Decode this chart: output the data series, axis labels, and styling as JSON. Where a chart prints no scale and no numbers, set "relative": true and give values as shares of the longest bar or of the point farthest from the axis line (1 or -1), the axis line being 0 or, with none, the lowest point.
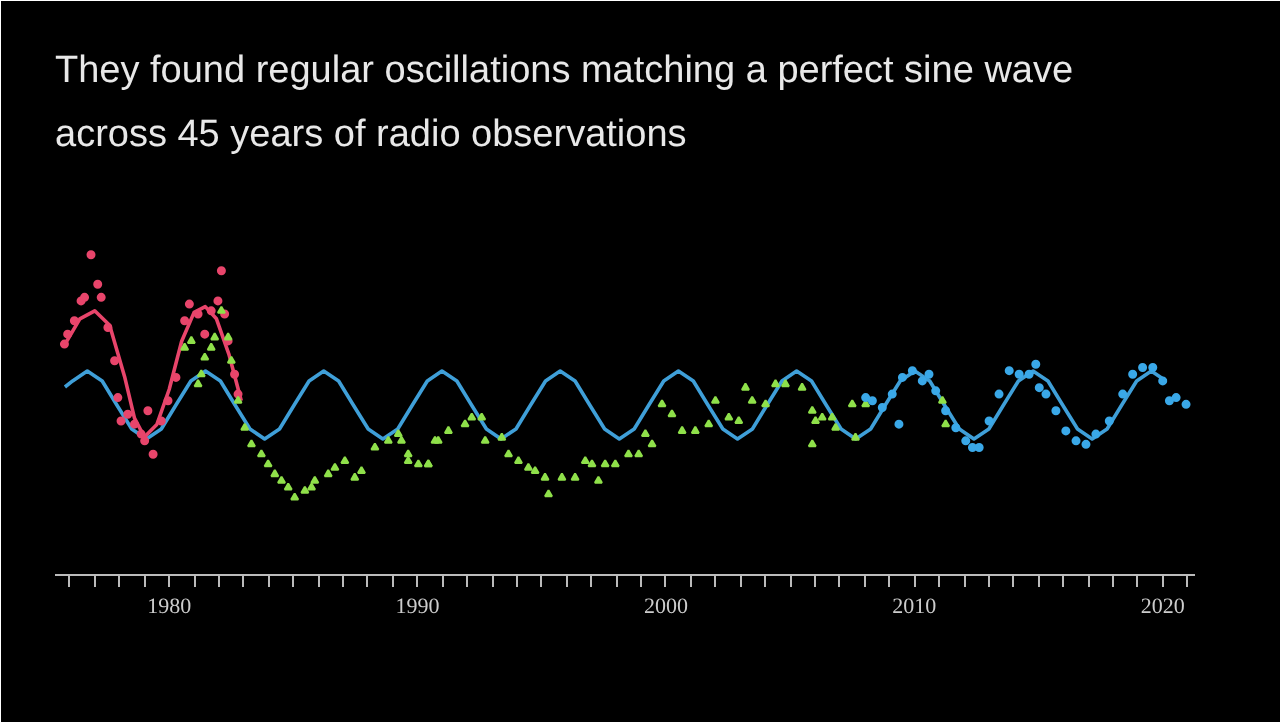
{
  "chart_data": {
    "type": "scatter",
    "title": "They found regular oscillations matching a perfect sine wave\nacross 45 years of radio observations",
    "relative": true,
    "grid": false,
    "xlim": [
      1975.4,
      2021.3
    ],
    "xticks": [
      {
        "value": 1976,
        "label": null
      },
      {
        "value": 1977,
        "label": null
      },
      {
        "value": 1978,
        "label": null
      },
      {
        "value": 1979,
        "label": null
      },
      1980,
      {
        "value": 1981,
        "label": null
      },
      {
        "value": 1982,
        "label": null
      },
      {
        "value": 1983,
        "label": null
      },
      {
        "value": 1984,
        "label": null
      },
      {
        "value": 1985,
        "label": null
      },
      {
        "value": 1986,
        "label": null
      },
      {
        "value": 1987,
        "label": null
      },
      {
        "value": 1988,
        "label": null
      },
      {
        "value": 1989,
        "label": null
      },
      1990,
      {
        "value": 1991,
        "label": null
      },
      {
        "value": 1992,
        "label": null
      },
      {
        "value": 1993,
        "label": null
      },
      {
        "value": 1994,
        "label": null
      },
      {
        "value": 1995,
        "label": null
      },
      {
        "value": 1996,
        "label": null
      },
      {
        "value": 1997,
        "label": null
      },
      {
        "value": 1998,
        "label": null
      },
      {
        "value": 1999,
        "label": null
      },
      2000,
      {
        "value": 2001,
        "label": null
      },
      {
        "value": 2002,
        "label": null
      },
      {
        "value": 2003,
        "label": null
      },
      {
        "value": 2004,
        "label": null
      },
      {
        "value": 2005,
        "label": null
      },
      {
        "value": 2006,
        "label": null
      },
      {
        "value": 2007,
        "label": null
      },
      {
        "value": 2008,
        "label": null
      },
      {
        "value": 2009,
        "label": null
      },
      2010,
      {
        "value": 2011,
        "label": null
      },
      {
        "value": 2012,
        "label": null
      },
      {
        "value": 2013,
        "label": null
      },
      {
        "value": 2014,
        "label": null
      },
      {
        "value": 2015,
        "label": null
      },
      {
        "value": 2016,
        "label": null
      },
      {
        "value": 2017,
        "label": null
      },
      {
        "value": 2018,
        "label": null
      },
      {
        "value": 2019,
        "label": null
      },
      2020,
      {
        "value": 2021,
        "label": null
      }
    ],
    "series": [
      {
        "type": "line",
        "color": "#3f9fd8",
        "line_style": "solid",
        "x": [
          1975.8,
          1976.11,
          1976.7,
          1977.3,
          1977.89,
          1978.49,
          1979.08,
          1979.68,
          1980.27,
          1980.87,
          1981.46,
          1982.06,
          1982.65,
          1983.25,
          1983.84,
          1984.44,
          1985.03,
          1985.63,
          1986.22,
          1986.82,
          1987.41,
          1988.01,
          1988.6,
          1989.2,
          1989.79,
          1990.39,
          1990.98,
          1991.58,
          1992.17,
          1992.77,
          1993.36,
          1993.96,
          1994.55,
          1995.15,
          1995.74,
          1996.34,
          1996.93,
          1997.53,
          1998.12,
          1998.72,
          1999.31,
          1999.91,
          2000.5,
          2001.1,
          2001.69,
          2002.29,
          2002.88,
          2003.48,
          2004.07,
          2004.67,
          2005.26,
          2005.86,
          2006.45,
          2007.05,
          2007.64,
          2008.24,
          2008.83,
          2009.43,
          2010.02,
          2010.62,
          2011.21,
          2011.81,
          2012.4,
          2013.0,
          2013.59,
          2014.19,
          2014.78,
          2015.38,
          2015.97,
          2016.57,
          2017.16,
          2017.76,
          2018.35,
          2018.95,
          2019.54,
          2020.14
        ],
        "values": [
          0.587,
          0.606,
          0.637,
          0.606,
          0.531,
          0.456,
          0.425,
          0.456,
          0.531,
          0.606,
          0.637,
          0.606,
          0.531,
          0.456,
          0.425,
          0.456,
          0.531,
          0.606,
          0.637,
          0.606,
          0.531,
          0.456,
          0.425,
          0.456,
          0.531,
          0.606,
          0.637,
          0.606,
          0.531,
          0.456,
          0.425,
          0.456,
          0.531,
          0.606,
          0.637,
          0.606,
          0.531,
          0.456,
          0.425,
          0.456,
          0.531,
          0.606,
          0.637,
          0.606,
          0.531,
          0.456,
          0.425,
          0.456,
          0.531,
          0.606,
          0.637,
          0.606,
          0.531,
          0.456,
          0.425,
          0.456,
          0.531,
          0.606,
          0.637,
          0.606,
          0.531,
          0.456,
          0.425,
          0.456,
          0.531,
          0.606,
          0.637,
          0.606,
          0.531,
          0.456,
          0.425,
          0.456,
          0.531,
          0.606,
          0.637,
          0.606
        ]
      },
      {
        "type": "line",
        "color": "#e8456b",
        "line_style": "solid",
        "x": [
          1975.8,
          1976.4,
          1977.0,
          1977.6,
          1978.2,
          1978.6,
          1979.0,
          1979.5,
          1980.0,
          1980.5,
          1981.0,
          1981.45,
          1981.9,
          1982.4,
          1982.9
        ],
        "values": [
          0.72,
          0.8,
          0.825,
          0.78,
          0.62,
          0.49,
          0.431,
          0.47,
          0.58,
          0.73,
          0.82,
          0.838,
          0.8,
          0.69,
          0.544
        ]
      },
      {
        "color": "#e8456b",
        "marker": "circle",
        "x": [
          1975.78,
          1975.91,
          1976.18,
          1976.45,
          1976.59,
          1976.85,
          1977.12,
          1977.26,
          1977.53,
          1977.8,
          1977.93,
          1978.06,
          1978.33,
          1978.6,
          1978.87,
          1979.01,
          1979.35,
          1979.14,
          1979.68,
          1979.95,
          1980.27,
          1980.62,
          1980.81,
          1981.16,
          1981.43,
          1981.69,
          1981.96,
          1982.1,
          1982.23,
          1982.37,
          1982.63,
          1982.77
        ],
        "values": [
          0.721,
          0.752,
          0.794,
          0.856,
          0.867,
          1.0,
          0.908,
          0.867,
          0.773,
          0.669,
          0.554,
          0.481,
          0.502,
          0.471,
          0.44,
          0.419,
          0.377,
          0.513,
          0.481,
          0.544,
          0.617,
          0.794,
          0.846,
          0.815,
          0.752,
          0.825,
          0.856,
          0.95,
          0.815,
          0.731,
          0.627,
          0.565
        ]
      },
      {
        "color": "#8fe04a",
        "marker": "triangle",
        "x": [
          1980.62,
          1980.89,
          1981.16,
          1981.29,
          1981.43,
          1981.69,
          1981.83,
          1982.1,
          1982.37,
          1982.5,
          1982.77,
          1983.04,
          1983.31,
          1983.71,
          1983.98,
          1984.25,
          1984.52,
          1984.79,
          1985.05,
          1985.46,
          1985.73,
          1985.86,
          1986.4,
          1986.67,
          1987.07,
          1987.47,
          1987.74,
          1988.28,
          1988.82,
          1989.22,
          1989.62,
          1990.03,
          1990.43,
          1990.83,
          1989.35,
          1989.62,
          1990.43,
          1990.7,
          1991.24,
          1991.91,
          1992.18,
          1992.58,
          1992.72,
          1993.39,
          1993.66,
          1994.06,
          1994.46,
          1994.73,
          1995.13,
          1995.27,
          1995.81,
          1996.34,
          1996.75,
          1997.02,
          1997.28,
          1997.55,
          1997.96,
          1998.49,
          1998.9,
          1999.17,
          1999.44,
          1999.84,
          2000.24,
          2000.65,
          2001.18,
          2001.72,
          2001.99,
          2002.53,
          2002.93,
          2003.2,
          2003.47,
          2004.01,
          2004.41,
          2004.81,
          2005.48,
          2005.89,
          2005.89,
          2006.29,
          2006.83,
          2006.02,
          2006.69,
          2007.5,
          2008.04,
          2007.63,
          2011.13,
          2011.26
        ],
        "values": [
          0.71,
          0.731,
          0.596,
          0.627,
          0.679,
          0.71,
          0.742,
          0.825,
          0.742,
          0.669,
          0.544,
          0.46,
          0.408,
          0.377,
          0.346,
          0.315,
          0.294,
          0.273,
          0.242,
          0.263,
          0.273,
          0.294,
          0.315,
          0.335,
          0.356,
          0.304,
          0.325,
          0.398,
          0.419,
          0.44,
          0.377,
          0.346,
          0.346,
          0.419,
          0.419,
          0.356,
          0.346,
          0.419,
          0.45,
          0.471,
          0.492,
          0.492,
          0.419,
          0.429,
          0.377,
          0.356,
          0.335,
          0.325,
          0.304,
          0.252,
          0.304,
          0.304,
          0.356,
          0.346,
          0.294,
          0.346,
          0.346,
          0.377,
          0.377,
          0.44,
          0.408,
          0.533,
          0.502,
          0.45,
          0.45,
          0.471,
          0.544,
          0.492,
          0.481,
          0.585,
          0.544,
          0.533,
          0.596,
          0.596,
          0.585,
          0.513,
          0.408,
          0.492,
          0.46,
          0.481,
          0.492,
          0.533,
          0.533,
          0.429,
          0.544,
          0.471
        ]
      },
      {
        "color": "#3aa8e8",
        "marker": "circle",
        "x": [
          2008.04,
          2008.31,
          2008.71,
          2009.11,
          2009.38,
          2009.52,
          2009.92,
          2010.32,
          2010.59,
          2010.86,
          2011.26,
          2011.67,
          2012.07,
          2012.34,
          2012.61,
          2013.01,
          2013.41,
          2013.82,
          2014.22,
          2014.62,
          2014.89,
          2015.03,
          2015.3,
          2015.7,
          2016.1,
          2016.51,
          2016.91,
          2017.31,
          2017.85,
          2018.39,
          2018.79,
          2019.19,
          2019.6,
          2020.0,
          2020.27,
          2020.54,
          2020.94
        ],
        "values": [
          0.554,
          0.544,
          0.523,
          0.565,
          0.471,
          0.617,
          0.638,
          0.606,
          0.627,
          0.575,
          0.513,
          0.46,
          0.419,
          0.398,
          0.398,
          0.481,
          0.565,
          0.638,
          0.627,
          0.627,
          0.658,
          0.585,
          0.565,
          0.513,
          0.45,
          0.419,
          0.408,
          0.44,
          0.481,
          0.565,
          0.627,
          0.648,
          0.648,
          0.606,
          0.544,
          0.554,
          0.533
        ]
      }
    ]
  }
}
